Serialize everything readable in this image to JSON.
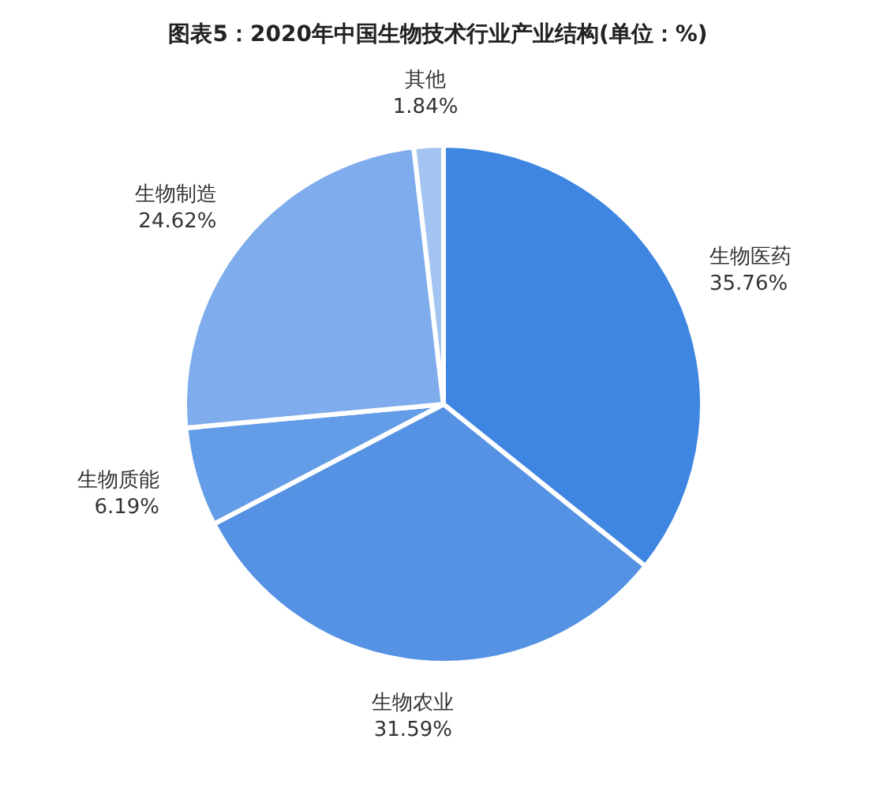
{
  "chart_data": {
    "type": "pie",
    "title": "图表5：2020年中国生物技术行业产业结构(单位：%)",
    "categories": [
      "生物医药",
      "生物农业",
      "生物质能",
      "生物制造",
      "其他"
    ],
    "values": [
      35.76,
      31.59,
      6.19,
      24.62,
      1.84
    ],
    "value_labels": [
      "35.76%",
      "31.59%",
      "6.19%",
      "24.62%",
      "1.84%"
    ],
    "colors": [
      "#3f86e2",
      "#5592e4",
      "#649de7",
      "#7eacec",
      "#a3c4f1"
    ]
  }
}
